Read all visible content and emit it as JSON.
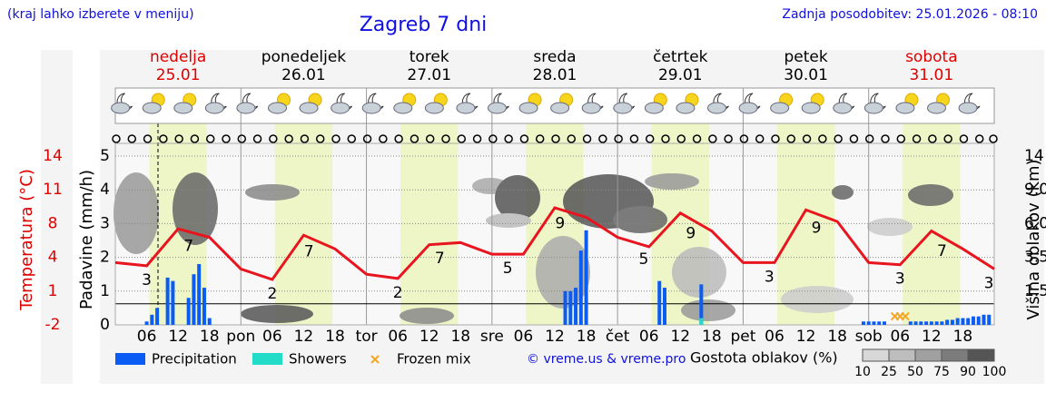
{
  "header": {
    "note": "(kraj lahko izberete v meniju)",
    "title": "Zagreb 7 dni",
    "updated": "Zadnja posodobitev: 25.01.2026 - 08:10"
  },
  "chart_data": {
    "type": "meteogram",
    "days": [
      {
        "name": "nedelja",
        "date": "25.01",
        "color": "#e00000"
      },
      {
        "name": "ponedeljek",
        "date": "26.01",
        "color": "#000000"
      },
      {
        "name": "torek",
        "date": "27.01",
        "color": "#000000"
      },
      {
        "name": "sreda",
        "date": "28.01",
        "color": "#000000"
      },
      {
        "name": "četrtek",
        "date": "29.01",
        "color": "#000000"
      },
      {
        "name": "petek",
        "date": "30.01",
        "color": "#000000"
      },
      {
        "name": "sobota",
        "date": "31.01",
        "color": "#e00000"
      }
    ],
    "xlim": [
      0,
      168
    ],
    "xticks": [
      {
        "value": 6,
        "label": "06"
      },
      {
        "value": 12,
        "label": "12"
      },
      {
        "value": 18,
        "label": "18"
      },
      {
        "value": 24,
        "label": "pon"
      },
      {
        "value": 30,
        "label": "06"
      },
      {
        "value": 36,
        "label": "12"
      },
      {
        "value": 42,
        "label": "18"
      },
      {
        "value": 48,
        "label": "tor"
      },
      {
        "value": 54,
        "label": "06"
      },
      {
        "value": 60,
        "label": "12"
      },
      {
        "value": 66,
        "label": "18"
      },
      {
        "value": 72,
        "label": "sre"
      },
      {
        "value": 78,
        "label": "06"
      },
      {
        "value": 84,
        "label": "12"
      },
      {
        "value": 90,
        "label": "18"
      },
      {
        "value": 96,
        "label": "čet"
      },
      {
        "value": 102,
        "label": "06"
      },
      {
        "value": 108,
        "label": "12"
      },
      {
        "value": 114,
        "label": "18"
      },
      {
        "value": 120,
        "label": "pet"
      },
      {
        "value": 126,
        "label": "06"
      },
      {
        "value": 132,
        "label": "12"
      },
      {
        "value": 138,
        "label": "18"
      },
      {
        "value": 144,
        "label": "sob"
      },
      {
        "value": 150,
        "label": "06"
      },
      {
        "value": 156,
        "label": "12"
      },
      {
        "value": 162,
        "label": "18"
      }
    ],
    "ylim": [
      0,
      5
    ],
    "yticks": [
      0,
      1,
      2,
      3,
      4,
      5
    ],
    "ylabel": "Padavine (mm/h)",
    "y2lim": [
      -2,
      14
    ],
    "y2ticks": [
      -2,
      {
        "value": 1.2,
        "label": "1"
      },
      {
        "value": 4.4,
        "label": "4"
      },
      {
        "value": 7.6,
        "label": "8"
      },
      {
        "value": 10.8,
        "label": "11"
      },
      14
    ],
    "y2label": "Temperatura (°C)",
    "y3lim": [
      0,
      14
    ],
    "y3ticks": [
      1.5,
      3.5,
      {
        "value": 6,
        "label": "6.0"
      },
      {
        "value": 9,
        "label": "9.0"
      },
      14
    ],
    "y3label": "Višina oblakov (km)",
    "grid": true,
    "series": [
      {
        "kind": "line",
        "axis": "y2",
        "color": "#e8141e",
        "x": [
          0,
          6,
          12,
          18,
          24,
          30,
          36,
          42,
          48,
          54,
          60,
          66,
          72,
          78,
          84,
          90,
          96,
          102,
          108,
          114,
          120,
          126,
          132,
          138,
          144,
          150,
          156,
          162,
          168
        ],
        "values": [
          3.9,
          3.6,
          7.1,
          6.3,
          3.3,
          2.3,
          6.5,
          5.2,
          2.8,
          2.4,
          5.6,
          5.8,
          4.7,
          4.7,
          9.1,
          8.2,
          6.3,
          5.4,
          8.6,
          6.9,
          3.9,
          3.9,
          8.9,
          7.8,
          3.9,
          3.7,
          6.9,
          5.2,
          3.3
        ]
      },
      {
        "name": "Precipitation",
        "kind": "bar",
        "color": "#0a5cf5",
        "x": [
          6,
          7,
          8,
          10,
          11,
          14,
          15,
          16,
          17,
          18,
          86,
          87,
          88,
          89,
          90,
          104,
          105,
          112,
          143,
          144,
          145,
          146,
          147,
          152,
          153,
          154,
          155,
          156,
          157,
          158,
          159,
          160,
          161,
          162,
          163,
          164,
          165,
          166,
          167
        ],
        "values": [
          0.1,
          0.3,
          0.5,
          1.4,
          1.3,
          0.8,
          1.5,
          1.8,
          1.1,
          0.2,
          1.0,
          1.0,
          1.1,
          2.2,
          2.8,
          1.3,
          1.1,
          1.2,
          0.1,
          0.1,
          0.1,
          0.1,
          0.1,
          0.1,
          0.1,
          0.1,
          0.1,
          0.1,
          0.1,
          0.1,
          0.15,
          0.15,
          0.2,
          0.2,
          0.2,
          0.25,
          0.25,
          0.3,
          0.3
        ]
      },
      {
        "name": "Showers",
        "kind": "bar",
        "color": "#22dcc8",
        "x": [
          112
        ],
        "values": [
          0.2
        ]
      },
      {
        "name": "Frozen mix",
        "kind": "cross",
        "color": "#f5a623",
        "x": [
          149,
          150,
          151
        ],
        "values": [
          0.2,
          0.2,
          0.2
        ]
      }
    ],
    "temperature_labels": {
      "x": [
        6,
        14,
        30,
        37,
        54,
        62,
        75,
        85,
        101,
        110,
        125,
        134,
        150,
        158,
        168
      ],
      "values": [
        3,
        7,
        2,
        7,
        2,
        7,
        5,
        9,
        5,
        9,
        3,
        9,
        3,
        7,
        3
      ]
    },
    "credit": "© vreme.us & vreme.pro",
    "cloud_legend": {
      "title": "Gostota oblakov (%)",
      "ticks": [
        10,
        25,
        50,
        75,
        90,
        100
      ]
    }
  }
}
